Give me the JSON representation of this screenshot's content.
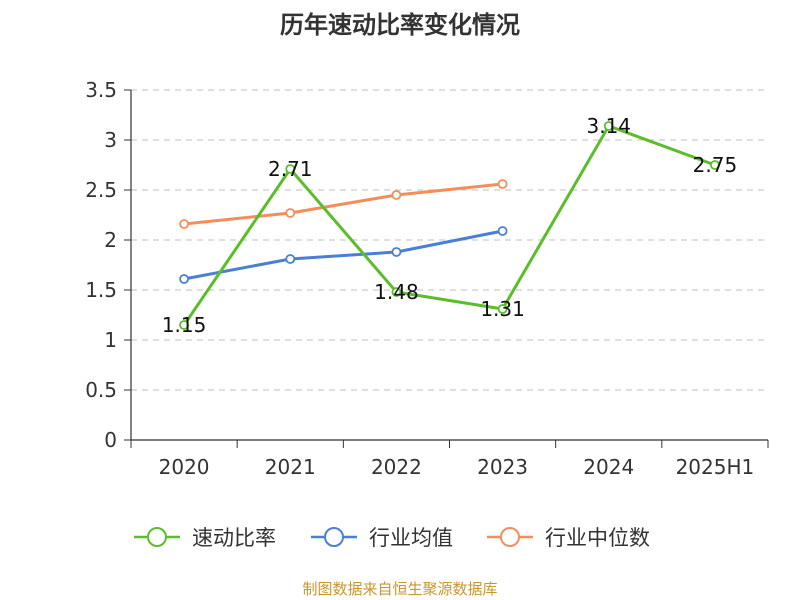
{
  "chart_data": {
    "type": "line",
    "title": "历年速动比率变化情况",
    "categories": [
      "2020",
      "2021",
      "2022",
      "2023",
      "2024",
      "2025H1"
    ],
    "y_ticks": [
      "0",
      "0.5",
      "1",
      "1.5",
      "2",
      "2.5",
      "3",
      "3.5"
    ],
    "ylim": [
      0,
      3.5
    ],
    "grid": true,
    "legend_position": "bottom",
    "series": [
      {
        "name": "速动比率",
        "color": "#5cbd2b",
        "values": [
          1.15,
          2.71,
          1.48,
          1.31,
          3.14,
          2.75
        ],
        "labels": [
          "1.15",
          "2.71",
          "1.48",
          "1.31",
          "3.14",
          "2.75"
        ]
      },
      {
        "name": "行业均值",
        "color": "#4a7fd6",
        "values": [
          1.61,
          1.81,
          1.88,
          2.09,
          null,
          null
        ]
      },
      {
        "name": "行业中位数",
        "color": "#f58d5b",
        "values": [
          2.16,
          2.27,
          2.45,
          2.56,
          null,
          null
        ]
      }
    ],
    "source": "制图数据来自恒生聚源数据库"
  }
}
